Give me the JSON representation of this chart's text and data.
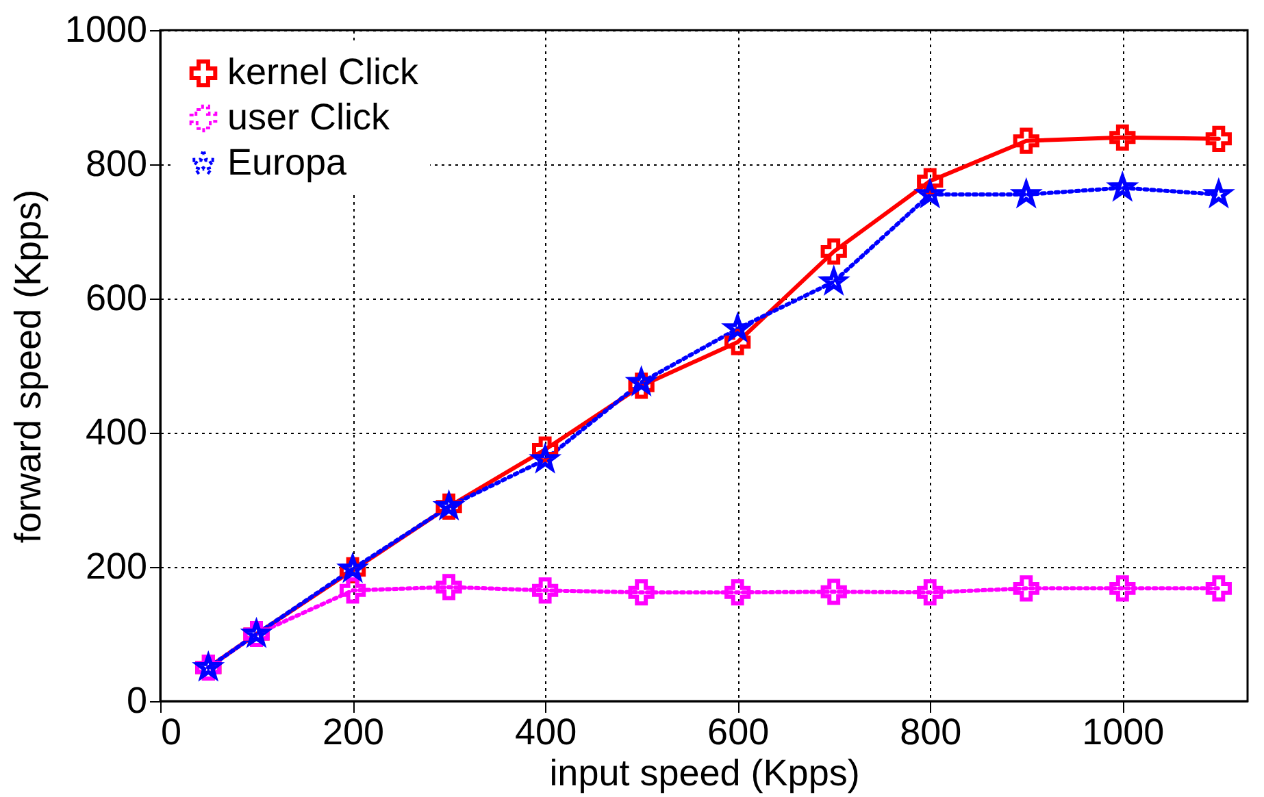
{
  "chart_data": {
    "type": "line",
    "xlabel": "input speed (Kpps)",
    "ylabel": "forward speed (Kpps)",
    "x": [
      50,
      100,
      200,
      300,
      400,
      500,
      600,
      700,
      800,
      900,
      1000,
      1100
    ],
    "series": [
      {
        "name": "kernel Click",
        "color": "#ff0000",
        "marker": "cross",
        "line_style": "solid",
        "values": [
          50,
          100,
          195,
          290,
          375,
          470,
          535,
          670,
          775,
          835,
          840,
          838
        ]
      },
      {
        "name": "user Click",
        "color": "#ff00ff",
        "marker": "cross",
        "line_style": "dotted",
        "values": [
          50,
          100,
          165,
          170,
          165,
          162,
          162,
          163,
          162,
          168,
          168,
          168
        ]
      },
      {
        "name": "Europa",
        "color": "#0000ff",
        "marker": "star",
        "line_style": "dotted",
        "values": [
          50,
          100,
          197,
          290,
          360,
          475,
          555,
          625,
          755,
          755,
          765,
          755
        ]
      }
    ],
    "xlim": [
      0,
      1130
    ],
    "ylim": [
      0,
      1000
    ],
    "xticks": [
      0,
      200,
      400,
      600,
      800,
      1000
    ],
    "yticks": [
      0,
      200,
      400,
      600,
      800,
      1000
    ],
    "grid": true,
    "legend": "top left"
  }
}
